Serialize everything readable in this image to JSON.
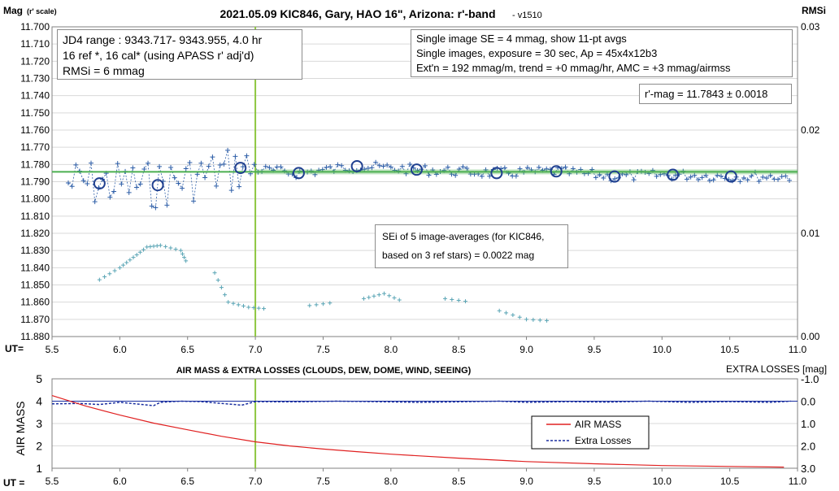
{
  "chart_data": [
    {
      "type": "scatter",
      "title": "2021.05.09 KIC846, Gary, HAO 16\", Arizona: r'-band",
      "version": "- v1510",
      "ylabel": "Mag",
      "ylabel_sub": "(r' scale)",
      "y2label": "RMSi",
      "xlabel": "UT=",
      "xlim": [
        5.5,
        11.0
      ],
      "ylim": [
        11.88,
        11.7
      ],
      "y2lim": [
        0.0,
        0.03
      ],
      "x_ticks": [
        "5.5",
        "6.0",
        "6.5",
        "7.0",
        "7.5",
        "8.0",
        "8.5",
        "9.0",
        "9.5",
        "10.0",
        "10.5",
        "11.0"
      ],
      "y_ticks": [
        "11.700",
        "11.710",
        "11.720",
        "11.730",
        "11.740",
        "11.750",
        "11.760",
        "11.770",
        "11.780",
        "11.790",
        "11.800",
        "11.810",
        "11.820",
        "11.830",
        "11.840",
        "11.850",
        "11.860",
        "11.870",
        "11.880"
      ],
      "y2_ticks": [
        "0.03",
        "0.02",
        "0.01",
        "0.00"
      ],
      "grid": true,
      "vertical_marker_x": 7.0,
      "mean_mag": 11.7843,
      "colors": {
        "mag": "#2f5fa8",
        "avg": "#1f3f8f",
        "rms": "#5aa5b5",
        "mean": "#4caf50",
        "marker": "#8dc63f"
      },
      "averages": {
        "x": [
          5.85,
          6.28,
          6.89,
          7.32,
          7.75,
          8.19,
          8.78,
          9.22,
          9.65,
          10.08,
          10.51
        ],
        "y": [
          11.791,
          11.792,
          11.782,
          11.785,
          11.781,
          11.783,
          11.785,
          11.784,
          11.787,
          11.786,
          11.787
        ]
      },
      "annotations": {
        "left_box": [
          "JD4 range : 9343.717- 9343.955,  4.0  hr",
          "16 ref *, 16 cal* (using APASS r' adj'd)",
          "RMSi = 6 mmag"
        ],
        "right_box": [
          "Single image SE = 4 mmag, show  11-pt avgs",
          "Single images, exposure = 30 sec, Ap = 45x4x12b3",
          "Ext'n = 192 mmag/m, trend =  +0 mmag/hr, AMC = +3 mmag/airmss"
        ],
        "result_box": "r'-mag = 11.7843 ± 0.0018",
        "sei_box": [
          "SEi of 5 image-averages (for KIC846,",
          "based on 3 ref stars) = 0.0022 mag"
        ]
      }
    },
    {
      "type": "line",
      "title": "AIR MASS & EXTRA LOSSES (CLOUDS, DEW, DOME, WIND, SEEING)",
      "ylabel": "AIR MASS",
      "y2label": "EXTRA LOSSES [mag]",
      "xlabel": "UT =",
      "xlim": [
        5.5,
        11.0
      ],
      "ylim": [
        1,
        5
      ],
      "y2lim": [
        3.0,
        -1.0
      ],
      "x_ticks": [
        "5.5",
        "6.0",
        "6.5",
        "7.0",
        "7.5",
        "8.0",
        "8.5",
        "9.0",
        "9.5",
        "10.0",
        "10.5",
        "11.0"
      ],
      "y_ticks": [
        "5",
        "4",
        "3",
        "2",
        "1"
      ],
      "y2_ticks": [
        "-1.0",
        "0.0",
        "1.0",
        "2.0",
        "3.0"
      ],
      "vertical_marker_x": 7.0,
      "legend": [
        "AIR MASS",
        "Extra Losses"
      ],
      "colors": {
        "airmass": "#e02020",
        "losses": "#1a2fa0",
        "marker": "#8dc63f",
        "ref": "#1a2fa0"
      },
      "airmass": {
        "x": [
          5.5,
          5.75,
          6.0,
          6.25,
          6.5,
          6.75,
          7.0,
          7.25,
          7.5,
          7.75,
          8.0,
          8.5,
          9.0,
          9.5,
          10.0,
          10.5,
          10.9
        ],
        "y": [
          4.25,
          3.78,
          3.38,
          3.02,
          2.72,
          2.43,
          2.18,
          2.0,
          1.86,
          1.74,
          1.63,
          1.45,
          1.3,
          1.2,
          1.12,
          1.08,
          1.05
        ]
      },
      "losses": {
        "x": [
          5.5,
          5.7,
          5.85,
          6.0,
          6.25,
          6.3,
          6.45,
          6.6,
          6.9,
          7.0,
          7.3,
          7.6,
          7.9,
          8.2,
          8.5,
          8.8,
          9.0,
          9.3,
          9.6,
          9.9,
          10.2,
          10.5,
          10.8,
          10.95
        ],
        "y": [
          0.12,
          0.1,
          0.15,
          0.05,
          0.2,
          0.05,
          0.0,
          0.02,
          0.18,
          0.02,
          0.03,
          0.0,
          0.02,
          0.05,
          0.03,
          0.0,
          0.05,
          0.02,
          0.04,
          0.0,
          0.05,
          0.02,
          0.05,
          0.0
        ]
      }
    }
  ]
}
